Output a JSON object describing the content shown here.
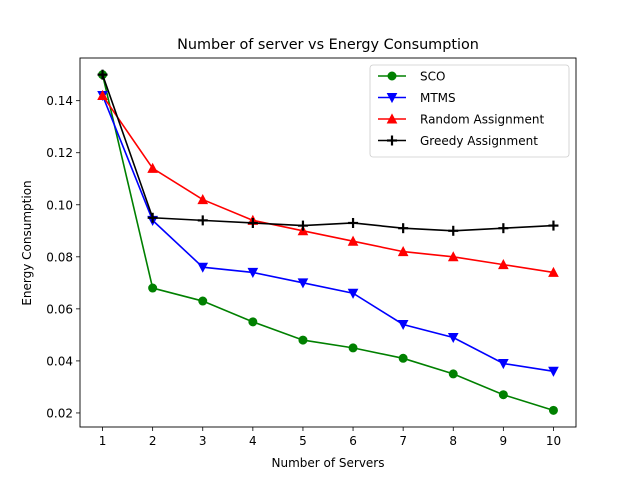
{
  "chart_data": {
    "type": "line",
    "title": "Number of server vs Energy Consumption",
    "xlabel": "Number of Servers",
    "ylabel": "Energy Consumption",
    "x": [
      1,
      2,
      3,
      4,
      5,
      6,
      7,
      8,
      9,
      10
    ],
    "xticks": [
      "1",
      "2",
      "3",
      "4",
      "5",
      "6",
      "7",
      "8",
      "9",
      "10"
    ],
    "yticks": [
      0.02,
      0.04,
      0.06,
      0.08,
      0.1,
      0.12,
      0.14
    ],
    "ytick_labels": [
      "0.02",
      "0.04",
      "0.06",
      "0.08",
      "0.10",
      "0.12",
      "0.14"
    ],
    "xlim": [
      0.55,
      10.45
    ],
    "ylim": [
      0.0146,
      0.1564
    ],
    "grid": false,
    "legend_position": "top-right",
    "series": [
      {
        "name": "SCO",
        "color": "#008000",
        "marker": "circle",
        "values": [
          0.15,
          0.068,
          0.063,
          0.055,
          0.048,
          0.045,
          0.041,
          0.035,
          0.027,
          0.021
        ]
      },
      {
        "name": "MTMS",
        "color": "#0000ff",
        "marker": "triangle-down",
        "values": [
          0.142,
          0.094,
          0.076,
          0.074,
          0.07,
          0.066,
          0.054,
          0.049,
          0.039,
          0.036
        ]
      },
      {
        "name": "Random Assignment",
        "color": "#ff0000",
        "marker": "triangle-up",
        "values": [
          0.142,
          0.114,
          0.102,
          0.094,
          0.09,
          0.086,
          0.082,
          0.08,
          0.077,
          0.074
        ]
      },
      {
        "name": "Greedy Assignment",
        "color": "#000000",
        "marker": "plus",
        "values": [
          0.15,
          0.095,
          0.094,
          0.093,
          0.092,
          0.093,
          0.091,
          0.09,
          0.091,
          0.092
        ]
      }
    ]
  }
}
